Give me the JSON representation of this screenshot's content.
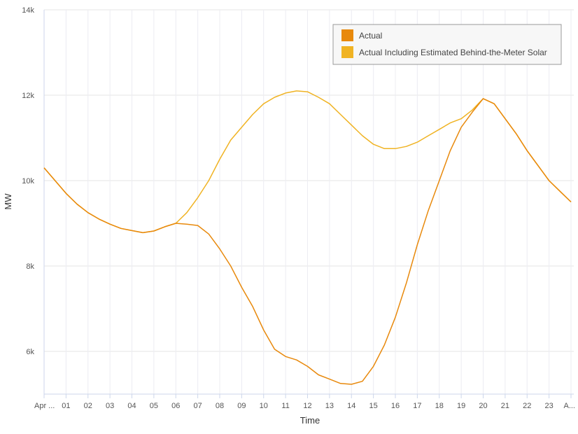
{
  "chart_data": {
    "type": "line",
    "xlabel": "Time",
    "ylabel": "MW",
    "ylim": [
      5000,
      14000
    ],
    "y_ticks": [
      6000,
      8000,
      10000,
      12000,
      14000
    ],
    "y_tick_labels": [
      "6k",
      "8k",
      "10k",
      "12k",
      "14k"
    ],
    "x_tick_labels": [
      "Apr ...",
      "01",
      "02",
      "03",
      "04",
      "05",
      "06",
      "07",
      "08",
      "09",
      "10",
      "11",
      "12",
      "13",
      "14",
      "15",
      "16",
      "17",
      "18",
      "19",
      "20",
      "21",
      "22",
      "23",
      "A..."
    ],
    "x_range_hours": [
      0,
      24
    ],
    "grid": "vertical and horizontal",
    "legend_position": "top-right",
    "series": [
      {
        "name": "Actual",
        "color": "#e8890c",
        "points": [
          [
            0,
            10300
          ],
          [
            0.5,
            10000
          ],
          [
            1,
            9700
          ],
          [
            1.5,
            9450
          ],
          [
            2,
            9250
          ],
          [
            2.5,
            9100
          ],
          [
            3,
            8980
          ],
          [
            3.5,
            8880
          ],
          [
            4,
            8830
          ],
          [
            4.5,
            8780
          ],
          [
            5,
            8820
          ],
          [
            5.5,
            8920
          ],
          [
            6,
            9000
          ],
          [
            6.5,
            8980
          ],
          [
            7,
            8950
          ],
          [
            7.5,
            8750
          ],
          [
            8,
            8400
          ],
          [
            8.5,
            8000
          ],
          [
            9,
            7500
          ],
          [
            9.5,
            7050
          ],
          [
            10,
            6500
          ],
          [
            10.5,
            6050
          ],
          [
            11,
            5880
          ],
          [
            11.5,
            5800
          ],
          [
            12,
            5650
          ],
          [
            12.5,
            5450
          ],
          [
            13,
            5350
          ],
          [
            13.5,
            5250
          ],
          [
            14,
            5230
          ],
          [
            14.5,
            5300
          ],
          [
            15,
            5650
          ],
          [
            15.5,
            6150
          ],
          [
            16,
            6800
          ],
          [
            16.5,
            7600
          ],
          [
            17,
            8500
          ],
          [
            17.5,
            9300
          ],
          [
            18,
            10000
          ],
          [
            18.5,
            10700
          ],
          [
            19,
            11250
          ],
          [
            19.5,
            11600
          ],
          [
            20,
            11920
          ],
          [
            20.5,
            11800
          ],
          [
            21,
            11450
          ],
          [
            21.5,
            11100
          ],
          [
            22,
            10700
          ],
          [
            22.5,
            10350
          ],
          [
            23,
            10000
          ],
          [
            23.5,
            9750
          ],
          [
            24,
            9500
          ]
        ]
      },
      {
        "name": "Actual Including Estimated Behind-the-Meter Solar",
        "color": "#f0b323",
        "points": [
          [
            0,
            10300
          ],
          [
            0.5,
            10000
          ],
          [
            1,
            9700
          ],
          [
            1.5,
            9450
          ],
          [
            2,
            9250
          ],
          [
            2.5,
            9100
          ],
          [
            3,
            8980
          ],
          [
            3.5,
            8880
          ],
          [
            4,
            8830
          ],
          [
            4.5,
            8780
          ],
          [
            5,
            8820
          ],
          [
            5.5,
            8920
          ],
          [
            6,
            9000
          ],
          [
            6.5,
            9250
          ],
          [
            7,
            9600
          ],
          [
            7.5,
            10000
          ],
          [
            8,
            10500
          ],
          [
            8.5,
            10950
          ],
          [
            9,
            11250
          ],
          [
            9.5,
            11550
          ],
          [
            10,
            11800
          ],
          [
            10.5,
            11950
          ],
          [
            11,
            12050
          ],
          [
            11.5,
            12100
          ],
          [
            12,
            12080
          ],
          [
            12.5,
            11950
          ],
          [
            13,
            11800
          ],
          [
            13.5,
            11550
          ],
          [
            14,
            11300
          ],
          [
            14.5,
            11050
          ],
          [
            15,
            10850
          ],
          [
            15.5,
            10750
          ],
          [
            16,
            10750
          ],
          [
            16.5,
            10800
          ],
          [
            17,
            10900
          ],
          [
            17.5,
            11050
          ],
          [
            18,
            11200
          ],
          [
            18.5,
            11350
          ],
          [
            19,
            11450
          ],
          [
            19.5,
            11650
          ],
          [
            20,
            11920
          ],
          [
            20.5,
            11800
          ],
          [
            21,
            11450
          ],
          [
            21.5,
            11100
          ],
          [
            22,
            10700
          ],
          [
            22.5,
            10350
          ],
          [
            23,
            10000
          ],
          [
            23.5,
            9750
          ],
          [
            24,
            9500
          ]
        ]
      }
    ]
  }
}
